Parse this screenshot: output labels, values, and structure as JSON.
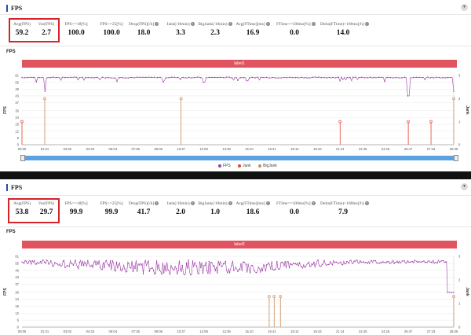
{
  "panel1": {
    "title": "FPS",
    "section": "FPS",
    "collapse": "▾",
    "metrics": [
      {
        "label": "Avg(FPS)",
        "value": "59.2"
      },
      {
        "label": "Var(FPS)",
        "value": "2.7"
      },
      {
        "label": "FPS>=18[%]",
        "value": "100.0"
      },
      {
        "label": "FPS>=25[%]",
        "value": "100.0"
      },
      {
        "label": "Drop(FPS)[/h]",
        "value": "18.0"
      },
      {
        "label": "Jank(/10min)",
        "value": "3.3"
      },
      {
        "label": "BigJank(/10min)",
        "value": "2.3"
      },
      {
        "label": "Avg(FTime)[ms]",
        "value": "16.9"
      },
      {
        "label": "FTime>=100ms[%]",
        "value": "0.0"
      },
      {
        "label": "Delta(FTime)>100ms[/h]",
        "value": "14.0"
      }
    ],
    "banner": "label1",
    "legend": {
      "fps": "FPS",
      "jank": "Jank",
      "bigjank": "BigJank"
    }
  },
  "panel2": {
    "title": "FPS",
    "section": "FPS",
    "collapse": "▾",
    "metrics": [
      {
        "label": "Avg(FPS)",
        "value": "53.8"
      },
      {
        "label": "Var(FPS)",
        "value": "29.7"
      },
      {
        "label": "FPS>=18[%]",
        "value": "99.9"
      },
      {
        "label": "FPS>=25[%]",
        "value": "99.9"
      },
      {
        "label": "Drop(FPS)[/h]",
        "value": "41.7"
      },
      {
        "label": "Jank(/10min)",
        "value": "2.0"
      },
      {
        "label": "BigJank(/10min)",
        "value": "1.0"
      },
      {
        "label": "Avg(FTime)[ms]",
        "value": "18.6"
      },
      {
        "label": "FTime>=100ms[%]",
        "value": "0.0"
      },
      {
        "label": "Delta(FTime)>100ms[/h]",
        "value": "7.9"
      }
    ],
    "banner": "label2"
  },
  "chart_data": [
    {
      "type": "line",
      "ylabel": "FPS",
      "y2label": "Jank",
      "yticks": [
        "61",
        "55",
        "49",
        "43",
        "37",
        "30",
        "24",
        "18",
        "12",
        "6",
        "0"
      ],
      "y2ticks": [
        "3",
        "2",
        "1",
        "0"
      ],
      "x": [
        "00:00",
        "01:31",
        "03:02",
        "04:33",
        "06:04",
        "07:35",
        "09:06",
        "10:37",
        "12:08",
        "13:39",
        "15:10",
        "16:41",
        "18:12",
        "19:43",
        "21:14",
        "22:45",
        "24:16",
        "25:47",
        "27:18",
        "28:49"
      ],
      "series": [
        {
          "name": "FPS",
          "color": "#9b3aa6",
          "level": 59.2,
          "dips": [
            {
              "t": "01:31",
              "v": 47
            },
            {
              "t": "12:08",
              "v": 55
            },
            {
              "t": "25:47",
              "v": 43
            },
            {
              "t": "28:49",
              "v": 47
            }
          ]
        },
        {
          "name": "Jank",
          "color": "#e0462f",
          "events": [
            "00:00",
            "21:14",
            "25:47",
            "27:18"
          ]
        },
        {
          "name": "BigJank",
          "color": "#c88a55",
          "events": [
            "01:31",
            "10:37",
            "28:49"
          ]
        }
      ]
    },
    {
      "type": "line",
      "ylabel": "FPS",
      "y2label": "Jank",
      "yticks": [
        "61",
        "55",
        "49",
        "43",
        "37",
        "30",
        "24",
        "18",
        "12",
        "6",
        "0"
      ],
      "y2ticks": [
        "3",
        "2",
        "1",
        "0"
      ],
      "x": [
        "00:00",
        "01:31",
        "03:02",
        "04:33",
        "06:04",
        "07:35",
        "09:06",
        "10:37",
        "12:08",
        "13:39",
        "15:10",
        "16:41",
        "18:12",
        "19:43",
        "21:14",
        "22:45",
        "24:16",
        "25:47",
        "27:18",
        "28:49"
      ],
      "series": [
        {
          "name": "FPS",
          "color": "#9b3aa6",
          "level": 53.8
        },
        {
          "name": "BigJank",
          "color": "#c88a55",
          "events": [
            "16:30",
            "16:50",
            "17:15",
            "28:49"
          ]
        }
      ]
    }
  ]
}
